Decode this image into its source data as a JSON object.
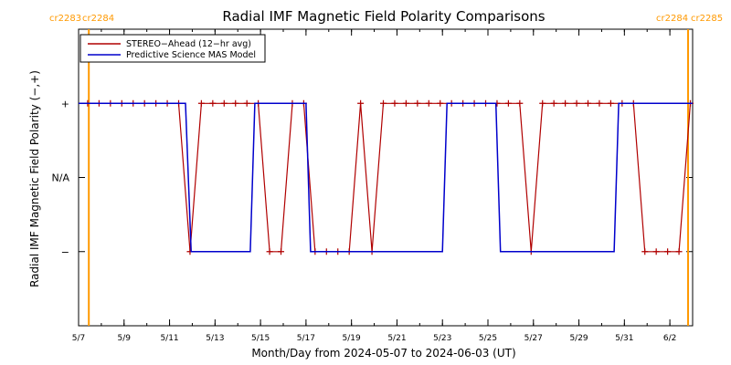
{
  "chart_data": {
    "type": "line",
    "title": "Radial IMF Magnetic Field Polarity Comparisons",
    "xlabel": "Month/Day from 2024-05-07 to 2024-06-03 (UT)",
    "ylabel": "Radial IMF Magnetic Field Polarity (−,+)",
    "x_unit": "day of 2024 starting 5/7",
    "xlim": [
      0,
      27
    ],
    "ylim": [
      -2,
      2
    ],
    "yticks": [
      {
        "value": 1,
        "label": "+"
      },
      {
        "value": 0,
        "label": "N/A"
      },
      {
        "value": -1,
        "label": "−"
      }
    ],
    "xticks": [
      {
        "value": 0,
        "label": "5/7"
      },
      {
        "value": 2,
        "label": "5/9"
      },
      {
        "value": 4,
        "label": "5/11"
      },
      {
        "value": 6,
        "label": "5/13"
      },
      {
        "value": 8,
        "label": "5/15"
      },
      {
        "value": 10,
        "label": "5/17"
      },
      {
        "value": 12,
        "label": "5/19"
      },
      {
        "value": 14,
        "label": "5/21"
      },
      {
        "value": 16,
        "label": "5/23"
      },
      {
        "value": 18,
        "label": "5/25"
      },
      {
        "value": 20,
        "label": "5/27"
      },
      {
        "value": 22,
        "label": "5/29"
      },
      {
        "value": 24,
        "label": "5/31"
      },
      {
        "value": 26,
        "label": "6/2"
      }
    ],
    "carrington_markers": [
      {
        "x": 0.45,
        "label_left": "cr2283",
        "label_right": "cr2284",
        "color": "#ff9900"
      },
      {
        "x": 26.8,
        "label_left": "cr2284",
        "label_right": "cr2285",
        "color": "#ff9900"
      }
    ],
    "series": [
      {
        "name": "STEREO−Ahead (12−hr avg)",
        "color": "#b00000",
        "marker": "+",
        "points": [
          [
            0.4,
            1
          ],
          [
            0.9,
            1
          ],
          [
            1.4,
            1
          ],
          [
            1.9,
            1
          ],
          [
            2.4,
            1
          ],
          [
            2.9,
            1
          ],
          [
            3.4,
            1
          ],
          [
            3.9,
            1
          ],
          [
            4.4,
            1
          ],
          [
            4.9,
            -1
          ],
          [
            5.4,
            1
          ],
          [
            5.9,
            1
          ],
          [
            6.4,
            1
          ],
          [
            6.9,
            1
          ],
          [
            7.4,
            1
          ],
          [
            7.9,
            1
          ],
          [
            8.4,
            -1
          ],
          [
            8.9,
            -1
          ],
          [
            9.4,
            1
          ],
          [
            9.9,
            1
          ],
          [
            10.4,
            -1
          ],
          [
            10.9,
            -1
          ],
          [
            11.4,
            -1
          ],
          [
            11.9,
            -1
          ],
          [
            12.4,
            1
          ],
          [
            12.9,
            -1
          ],
          [
            13.4,
            1
          ],
          [
            13.9,
            1
          ],
          [
            14.4,
            1
          ],
          [
            14.9,
            1
          ],
          [
            15.4,
            1
          ],
          [
            15.9,
            1
          ],
          [
            16.4,
            1
          ],
          [
            16.9,
            1
          ],
          [
            17.4,
            1
          ],
          [
            17.9,
            1
          ],
          [
            18.4,
            1
          ],
          [
            18.9,
            1
          ],
          [
            19.4,
            1
          ],
          [
            19.9,
            -1
          ],
          [
            20.4,
            1
          ],
          [
            20.9,
            1
          ],
          [
            21.4,
            1
          ],
          [
            21.9,
            1
          ],
          [
            22.4,
            1
          ],
          [
            22.9,
            1
          ],
          [
            23.4,
            1
          ],
          [
            23.9,
            1
          ],
          [
            24.4,
            1
          ],
          [
            24.9,
            -1
          ],
          [
            25.4,
            -1
          ],
          [
            25.9,
            -1
          ],
          [
            26.4,
            -1
          ],
          [
            26.9,
            1
          ]
        ]
      },
      {
        "name": "Predictive Science MAS Model",
        "color": "#0000cc",
        "marker": "none",
        "points": [
          [
            0,
            1
          ],
          [
            4.7,
            1
          ],
          [
            4.95,
            -1
          ],
          [
            7.55,
            -1
          ],
          [
            7.75,
            1
          ],
          [
            10.0,
            1
          ],
          [
            10.2,
            -1
          ],
          [
            16.0,
            -1
          ],
          [
            16.2,
            1
          ],
          [
            18.35,
            1
          ],
          [
            18.55,
            -1
          ],
          [
            23.55,
            -1
          ],
          [
            23.75,
            1
          ],
          [
            27,
            1
          ]
        ]
      }
    ]
  }
}
